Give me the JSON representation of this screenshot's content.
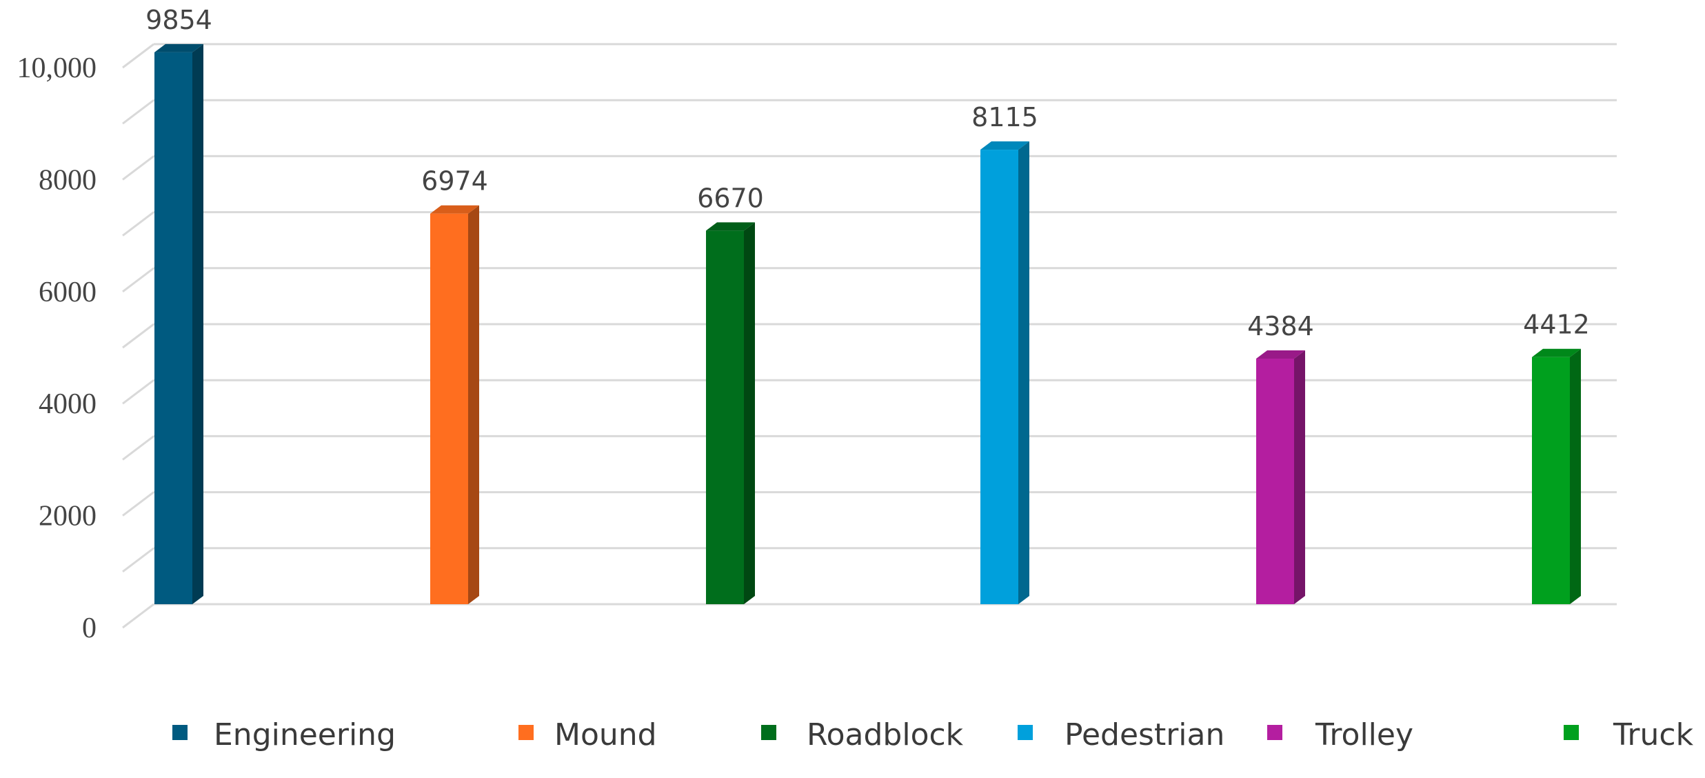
{
  "chart_data": {
    "type": "bar",
    "style": "3d-column",
    "categories": [
      "Engineering",
      "Mound",
      "Roadblock",
      "Pedestrian",
      "Trolley",
      "Truck"
    ],
    "values": [
      9854,
      6974,
      6670,
      8115,
      4384,
      4412
    ],
    "data_labels": [
      "9854",
      "6974",
      "6670",
      "8115",
      "4384",
      "4412"
    ],
    "colors": [
      "#005a80",
      "#ff6e1f",
      "#006e1c",
      "#00a0dc",
      "#b41ea0",
      "#00a01e"
    ],
    "ylim": [
      0,
      10000
    ],
    "yticks": [
      0,
      2000,
      4000,
      6000,
      8000,
      10000
    ],
    "ytick_labels": [
      "0",
      "2000",
      "4000",
      "6000",
      "8000",
      "10,000"
    ],
    "grid": true,
    "legend": {
      "position": "bottom",
      "entries": [
        "Engineering",
        "Mound",
        "Roadblock",
        "Pedestrian",
        "Trolley",
        "Truck"
      ]
    },
    "title": "",
    "xlabel": "",
    "ylabel": ""
  }
}
